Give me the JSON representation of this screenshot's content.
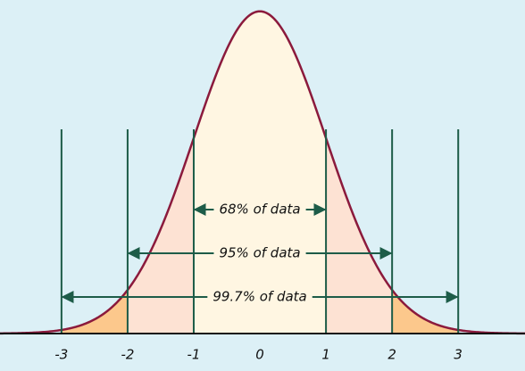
{
  "chart_data": {
    "type": "normal",
    "xlim": [
      -3.93,
      4.01
    ],
    "ylim": [
      0,
      0.413
    ],
    "xticks": [
      -3,
      -2,
      -1,
      0,
      1,
      2,
      3
    ],
    "curve_color": "#8b1a3c",
    "background": "#dcf0f6",
    "line_color": "#1d5c48",
    "intervals": [
      {
        "label": "68% of data",
        "from": -1,
        "to": 1,
        "color": "#fff6e2"
      },
      {
        "label": "95% of data",
        "from": -2,
        "to": 2,
        "color": "#fde2d3"
      },
      {
        "label": "99.7% of data",
        "from": -3,
        "to": 3,
        "color": "#fcc88c"
      }
    ]
  }
}
